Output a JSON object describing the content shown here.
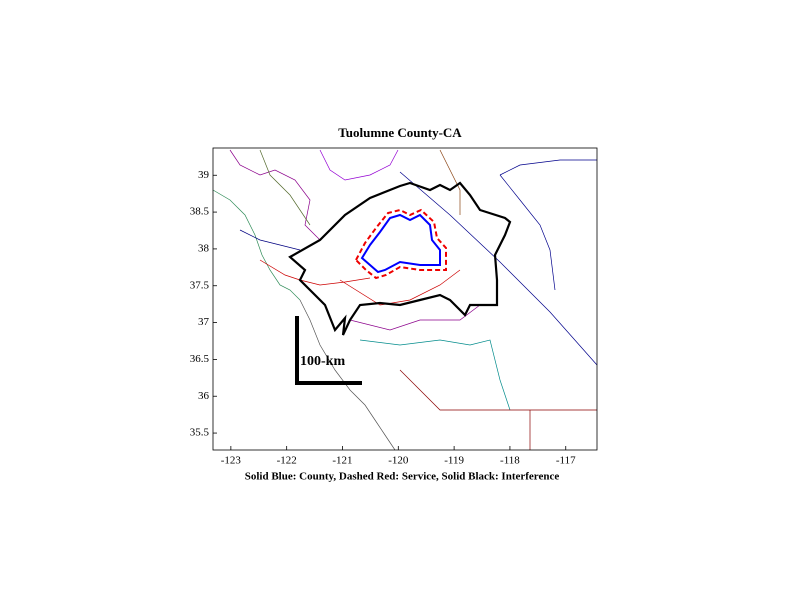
{
  "map": {
    "title": "Tuolumne County-CA",
    "xlabel": "Solid Blue: County, Dashed Red: Service, Solid Black: Interference",
    "xlim": [
      -123.32,
      -116.44
    ],
    "ylim": [
      35.27,
      39.37
    ],
    "xticks": [
      -123,
      -122,
      -121,
      -120,
      -119,
      -118,
      -117
    ],
    "yticks": [
      35.5,
      36,
      36.5,
      37,
      37.5,
      38,
      38.5,
      39
    ],
    "scale_bar_label": "100-km"
  }
}
